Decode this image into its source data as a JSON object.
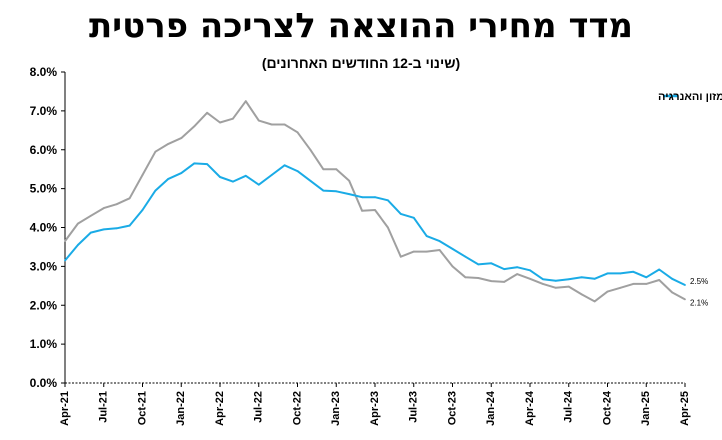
{
  "title": "מדד מחירי ההוצאה לצריכה פרטית",
  "subtitle": "(שינוי ב-12 החודשים האחרונים)",
  "chart_data": {
    "type": "line",
    "ylim": [
      0,
      8
    ],
    "y_ticks": [
      "0.0%",
      "1.0%",
      "2.0%",
      "3.0%",
      "4.0%",
      "5.0%",
      "6.0%",
      "7.0%",
      "8.0%"
    ],
    "x_ticks": [
      "Apr-21",
      "Jul-21",
      "Oct-21",
      "Jan-22",
      "Apr-22",
      "Jul-22",
      "Oct-22",
      "Jan-23",
      "Apr-23",
      "Jul-23",
      "Oct-23",
      "Jan-24",
      "Apr-24",
      "Jul-24",
      "Oct-24",
      "Jan-25",
      "Apr-25"
    ],
    "grid": false,
    "legend_position": "top-right",
    "series": [
      {
        "name": "ללא מחירי המזון והאנרגיה",
        "color": "#1AABE6",
        "end_label": "2.5%",
        "values": [
          3.15,
          3.55,
          3.87,
          3.95,
          3.98,
          4.05,
          4.45,
          4.95,
          5.25,
          5.4,
          5.65,
          5.63,
          5.3,
          5.18,
          5.33,
          5.1,
          5.35,
          5.6,
          5.45,
          5.2,
          4.95,
          4.93,
          4.86,
          4.78,
          4.78,
          4.7,
          4.35,
          4.25,
          3.78,
          3.65,
          3.45,
          3.25,
          3.05,
          3.08,
          2.93,
          2.98,
          2.9,
          2.67,
          2.63,
          2.67,
          2.72,
          2.68,
          2.82,
          2.82,
          2.86,
          2.72,
          2.92,
          2.68,
          2.52
        ]
      },
      {
        "name": "",
        "color": "#A0A0A0",
        "end_label": "2.1%",
        "values": [
          3.65,
          4.1,
          4.3,
          4.5,
          4.6,
          4.75,
          5.35,
          5.95,
          6.15,
          6.3,
          6.6,
          6.95,
          6.7,
          6.8,
          7.25,
          6.75,
          6.65,
          6.65,
          6.45,
          6.0,
          5.5,
          5.5,
          5.2,
          4.43,
          4.45,
          4.0,
          3.25,
          3.38,
          3.38,
          3.42,
          3.0,
          2.72,
          2.7,
          2.62,
          2.6,
          2.8,
          2.68,
          2.55,
          2.45,
          2.48,
          2.28,
          2.1,
          2.35,
          2.45,
          2.55,
          2.55,
          2.65,
          2.33,
          2.15
        ]
      }
    ]
  }
}
